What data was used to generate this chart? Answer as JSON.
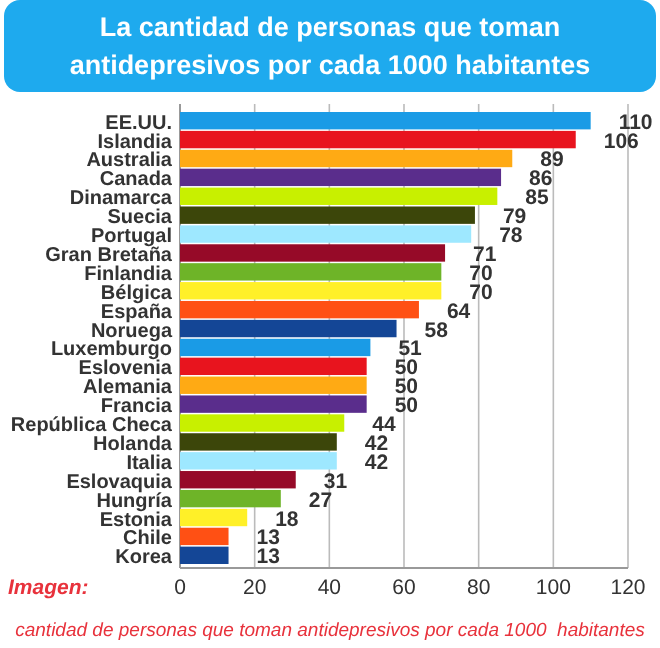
{
  "chart_data": {
    "type": "bar",
    "orientation": "horizontal",
    "title": "La cantidad de personas que toman antidepresivos por cada 1000 habitantes",
    "categories": [
      "EE.UU.",
      "Islandia",
      "Australia",
      "Canada",
      "Dinamarca",
      "Suecia",
      "Portugal",
      "Gran Bretaña",
      "Finlandia",
      "Bélgica",
      "España",
      "Noruega",
      "Luxemburgo",
      "Eslovenia",
      "Alemania",
      "Francia",
      "República Checa",
      "Holanda",
      "Italia",
      "Eslovaquia",
      "Hungría",
      "Estonia",
      "Chile",
      "Korea"
    ],
    "values": [
      110,
      106,
      89,
      86,
      85,
      79,
      78,
      71,
      70,
      70,
      64,
      58,
      51,
      50,
      50,
      50,
      44,
      42,
      42,
      31,
      27,
      18,
      13,
      13
    ],
    "colors": [
      "#1a9be6",
      "#e8141e",
      "#ffaa14",
      "#5a2d8c",
      "#c8f000",
      "#3c460a",
      "#9ee8ff",
      "#960a28",
      "#6eb428",
      "#fff028",
      "#ff5014",
      "#144696",
      "#1a9be6",
      "#e8141e",
      "#ffaa14",
      "#5a2d8c",
      "#c8f000",
      "#3c460a",
      "#9ee8ff",
      "#960a28",
      "#6eb428",
      "#fff028",
      "#ff5014",
      "#144696"
    ],
    "xlim": [
      0,
      120
    ],
    "xticks": [
      0,
      20,
      40,
      60,
      80,
      100,
      120
    ],
    "grid": "x",
    "data_labels": true,
    "annotations": [
      "Imagen:",
      "cantidad de personas que toman antidepresivos por cada 1000  habitantes"
    ]
  }
}
